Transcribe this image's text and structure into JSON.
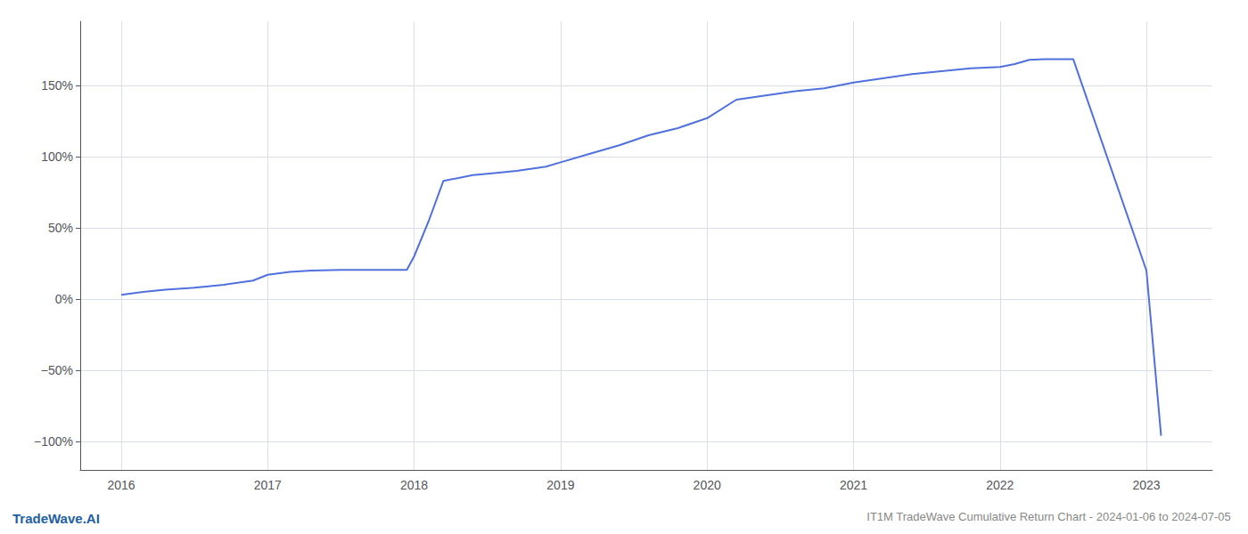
{
  "chart_data": {
    "type": "line",
    "title": "IT1M TradeWave Cumulative Return Chart - 2024-01-06 to 2024-07-05",
    "annotations": [
      {
        "text": "TradeWave.AI"
      }
    ],
    "x": [
      2016.0,
      2016.15,
      2016.3,
      2016.5,
      2016.7,
      2016.9,
      2017.0,
      2017.15,
      2017.3,
      2017.5,
      2017.7,
      2017.9,
      2017.95,
      2018.0,
      2018.1,
      2018.2,
      2018.4,
      2018.5,
      2018.7,
      2018.9,
      2019.0,
      2019.2,
      2019.4,
      2019.6,
      2019.8,
      2020.0,
      2020.2,
      2020.4,
      2020.6,
      2020.8,
      2021.0,
      2021.2,
      2021.4,
      2021.6,
      2021.8,
      2022.0,
      2022.1,
      2022.2,
      2022.3,
      2022.5,
      2023.0,
      2023.1
    ],
    "values": [
      3.0,
      5.0,
      6.5,
      8.0,
      10.0,
      13.0,
      17.0,
      19.0,
      20.0,
      20.5,
      20.5,
      20.5,
      20.5,
      30.0,
      55.0,
      83.0,
      87.0,
      88.0,
      90.0,
      93.0,
      96.0,
      102.0,
      108.0,
      115.0,
      120.0,
      127.0,
      140.0,
      143.0,
      146.0,
      148.0,
      152.0,
      155.0,
      158.0,
      160.0,
      162.0,
      163.0,
      165.0,
      168.0,
      168.5,
      168.5,
      20.0,
      -96.0
    ],
    "xlim": [
      2015.72,
      2023.45
    ],
    "xticks": [
      2016,
      2017,
      2018,
      2019,
      2020,
      2021,
      2022,
      2023
    ],
    "ylim": [
      -120,
      195
    ],
    "yticks": [
      {
        "value": -100,
        "label": "−100%"
      },
      {
        "value": -50,
        "label": "−50%"
      },
      {
        "value": 0,
        "label": "0%"
      },
      {
        "value": 50,
        "label": "50%"
      },
      {
        "value": 100,
        "label": "100%"
      },
      {
        "value": 150,
        "label": "150%"
      }
    ],
    "grid": true
  }
}
